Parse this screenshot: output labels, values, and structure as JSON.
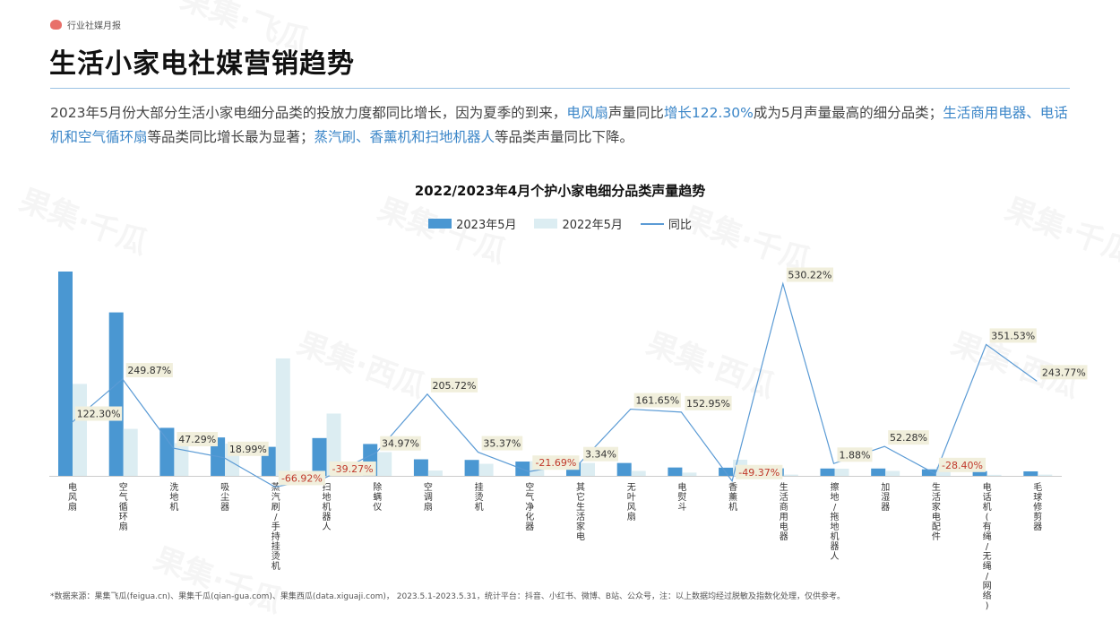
{
  "header": {
    "tag": "行业社媒月报",
    "title": "生活小家电社媒营销趋势"
  },
  "description": {
    "p1": "2023年5月份大部分生活小家电细分品类的投放力度都同比增长，因为夏季的到来，",
    "h1": "电风扇",
    "p2": "声量同比",
    "h2": "增长122.30%",
    "p3": "成为5月声量最高的细分品类；",
    "h3": "生活商用电器、电话机和空气循环扇",
    "p4": "等品类同比增长最为显著；",
    "h4": "蒸汽刷、香薰机和扫地机器人",
    "p5": "等品类声量同比下降。"
  },
  "footnote": "*数据来源：果集飞瓜(feigua.cn)、果集千瓜(qian-gua.com)、果集西瓜(data.xiguaji.com)， 2023.5.1-2023.5.31，统计平台：抖音、小红书、微博、B站、公众号，注：以上数据均经过脱敏及指数化处理，仅供参考。",
  "watermarks": [
    "果集·千瓜",
    "果集·西瓜",
    "果集·飞瓜"
  ],
  "colors": {
    "bar2023": "#4a97d2",
    "bar2022": "#dcedf2",
    "line": "#5b9bd5",
    "labelBg": "#f1efdc",
    "negative": "#c0392b",
    "accent": "#3b86c8"
  },
  "chart_data": {
    "type": "bar",
    "title": "2022/2023年4月个护小家电细分品类声量趋势",
    "legend": [
      "2023年5月",
      "2022年5月",
      "同比"
    ],
    "categories": [
      "电风扇",
      "空气循环扇",
      "洗地机",
      "吸尘器",
      "蒸汽刷/手持挂烫机",
      "扫地机器人",
      "除螨仪",
      "空调扇",
      "挂烫机",
      "空气净化器",
      "其它生活家电",
      "无叶风扇",
      "电熨斗",
      "香薰机",
      "生活商用电器",
      "擦地/拖地机器人",
      "加湿器",
      "生活家电配件",
      "电话机(有绳/无绳/网络)",
      "毛球修剪器"
    ],
    "series": [
      {
        "name": "2023年5月",
        "values": [
          100,
          80,
          23.5,
          18.8,
          14.2,
          18.5,
          15.6,
          8.1,
          7.8,
          7.0,
          6.5,
          6.3,
          4.1,
          4.0,
          3.7,
          3.6,
          3.6,
          3.2,
          2.3,
          2.2
        ]
      },
      {
        "name": "2022年5月",
        "values": [
          45,
          23,
          16,
          15.8,
          57.5,
          30.5,
          11.6,
          2.6,
          5.9,
          7.2,
          6.3,
          2.4,
          1.6,
          7.9,
          0.6,
          3.5,
          2.4,
          4.4,
          0.5,
          0.6
        ]
      },
      {
        "name": "同比",
        "values": [
          122.3,
          249.87,
          47.29,
          18.99,
          -66.92,
          -39.27,
          34.97,
          205.72,
          35.37,
          -21.69,
          3.34,
          161.65,
          152.95,
          -49.37,
          530.22,
          1.88,
          52.28,
          -28.4,
          351.53,
          243.77
        ]
      }
    ],
    "line_labels": [
      "122.30%",
      "249.87%",
      "47.29%",
      "18.99%",
      "-66.92%",
      "-39.27%",
      "34.97%",
      "205.72%",
      "35.37%",
      "-21.69%",
      "3.34%",
      "161.65%",
      "152.95%",
      "-49.37%",
      "530.22%",
      "1.88%",
      "52.28%",
      "-28.40%",
      "351.53%",
      "243.77%"
    ],
    "grid": false,
    "legend_position": "top"
  }
}
